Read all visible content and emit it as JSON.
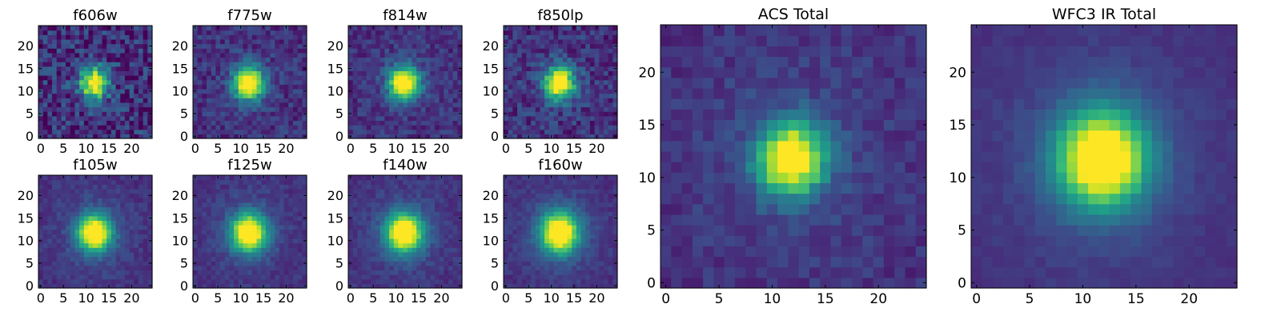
{
  "chart_data": [
    {
      "type": "heatmap",
      "title": "f606w",
      "grid": 25,
      "peak": 11.8,
      "noise": 0.36,
      "sigma": 2.2,
      "halo": 0,
      "xticks": [
        "0",
        "5",
        "10",
        "15",
        "20"
      ],
      "yticks": [
        "0",
        "5",
        "10",
        "15",
        "20"
      ],
      "xlim": [
        -0.5,
        24.5
      ],
      "ylim": [
        -0.5,
        24.5
      ]
    },
    {
      "type": "heatmap",
      "title": "f775w",
      "grid": 25,
      "peak": 11.8,
      "noise": 0.22,
      "sigma": 2.3,
      "halo": 0.05,
      "xticks": [
        "0",
        "5",
        "10",
        "15",
        "20"
      ],
      "yticks": [
        "0",
        "5",
        "10",
        "15",
        "20"
      ],
      "xlim": [
        -0.5,
        24.5
      ],
      "ylim": [
        -0.5,
        24.5
      ]
    },
    {
      "type": "heatmap",
      "title": "f814w",
      "grid": 25,
      "peak": 11.8,
      "noise": 0.2,
      "sigma": 2.3,
      "halo": 0.06,
      "xticks": [
        "0",
        "5",
        "10",
        "15",
        "20"
      ],
      "yticks": [
        "0",
        "5",
        "10",
        "15",
        "20"
      ],
      "xlim": [
        -0.5,
        24.5
      ],
      "ylim": [
        -0.5,
        24.5
      ]
    },
    {
      "type": "heatmap",
      "title": "f850lp",
      "grid": 25,
      "peak": 11.8,
      "noise": 0.26,
      "sigma": 2.3,
      "halo": 0.05,
      "xticks": [
        "0",
        "5",
        "10",
        "15",
        "20"
      ],
      "yticks": [
        "0",
        "5",
        "10",
        "15",
        "20"
      ],
      "xlim": [
        -0.5,
        24.5
      ],
      "ylim": [
        -0.5,
        24.5
      ]
    },
    {
      "type": "heatmap",
      "title": "f105w",
      "grid": 25,
      "peak": 11.8,
      "noise": 0.12,
      "sigma": 2.5,
      "halo": 0.12,
      "xticks": [
        "0",
        "5",
        "10",
        "15",
        "20"
      ],
      "yticks": [
        "0",
        "5",
        "10",
        "15",
        "20"
      ],
      "xlim": [
        -0.5,
        24.5
      ],
      "ylim": [
        -0.5,
        24.5
      ]
    },
    {
      "type": "heatmap",
      "title": "f125w",
      "grid": 25,
      "peak": 11.8,
      "noise": 0.12,
      "sigma": 2.6,
      "halo": 0.12,
      "xticks": [
        "0",
        "5",
        "10",
        "15",
        "20"
      ],
      "yticks": [
        "0",
        "5",
        "10",
        "15",
        "20"
      ],
      "xlim": [
        -0.5,
        24.5
      ],
      "ylim": [
        -0.5,
        24.5
      ]
    },
    {
      "type": "heatmap",
      "title": "f140w",
      "grid": 25,
      "peak": 11.8,
      "noise": 0.12,
      "sigma": 2.7,
      "halo": 0.13,
      "xticks": [
        "0",
        "5",
        "10",
        "15",
        "20"
      ],
      "yticks": [
        "0",
        "5",
        "10",
        "15",
        "20"
      ],
      "xlim": [
        -0.5,
        24.5
      ],
      "ylim": [
        -0.5,
        24.5
      ]
    },
    {
      "type": "heatmap",
      "title": "f160w",
      "grid": 25,
      "peak": 11.8,
      "noise": 0.11,
      "sigma": 2.8,
      "halo": 0.14,
      "xticks": [
        "0",
        "5",
        "10",
        "15",
        "20"
      ],
      "yticks": [
        "0",
        "5",
        "10",
        "15",
        "20"
      ],
      "xlim": [
        -0.5,
        24.5
      ],
      "ylim": [
        -0.5,
        24.5
      ]
    },
    {
      "type": "heatmap",
      "title": "ACS Total",
      "grid": 25,
      "peak": 11.8,
      "noise": 0.14,
      "sigma": 2.1,
      "halo": 0.1,
      "xticks": [
        "0",
        "5",
        "10",
        "15",
        "20"
      ],
      "yticks": [
        "0",
        "5",
        "10",
        "15",
        "20"
      ],
      "xlim": [
        -0.5,
        24.5
      ],
      "ylim": [
        -0.5,
        24.5
      ]
    },
    {
      "type": "heatmap",
      "title": "WFC3 IR Total",
      "grid": 25,
      "peak": 11.8,
      "noise": 0.06,
      "sigma": 2.8,
      "halo": 0.16,
      "xticks": [
        "0",
        "5",
        "10",
        "15",
        "20"
      ],
      "yticks": [
        "0",
        "5",
        "10",
        "15",
        "20"
      ],
      "xlim": [
        -0.5,
        24.5
      ],
      "ylim": [
        -0.5,
        24.5
      ]
    }
  ],
  "colormap": [
    "#440154",
    "#482878",
    "#3e4989",
    "#31688e",
    "#26828e",
    "#1f9e89",
    "#35b779",
    "#6ece58",
    "#b5de2b",
    "#fde725"
  ]
}
